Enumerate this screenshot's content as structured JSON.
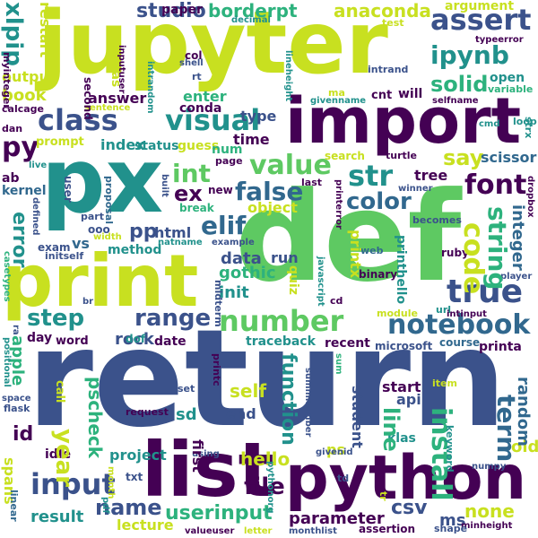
{
  "palette": {
    "purple": "#440154",
    "indigo": "#3b528b",
    "teal": "#21918c",
    "green": "#5ec962",
    "lime": "#c8e020",
    "navy": "#31688e",
    "aqua": "#2db27d"
  },
  "words": [
    {
      "text": "return",
      "color": "#3b528b"
    },
    {
      "text": "def",
      "color": "#5ec962"
    },
    {
      "text": "jupyter",
      "color": "#c8e020"
    },
    {
      "text": "import",
      "color": "#440154"
    },
    {
      "text": "px",
      "color": "#21918c"
    },
    {
      "text": "print",
      "color": "#c8e020"
    },
    {
      "text": "python",
      "color": "#440154"
    },
    {
      "text": "list",
      "color": "#440154"
    },
    {
      "text": "notebook",
      "color": "#31688e"
    },
    {
      "text": "number",
      "color": "#5ec962"
    },
    {
      "text": "true",
      "color": "#3b528b"
    },
    {
      "text": "class",
      "color": "#3b528b"
    },
    {
      "text": "visual",
      "color": "#21918c"
    },
    {
      "text": "range",
      "color": "#3b528b"
    },
    {
      "text": "input",
      "color": "#3b528b"
    },
    {
      "text": "studio",
      "color": "#3b528b"
    },
    {
      "text": "anaconda",
      "color": "#c8e020"
    },
    {
      "text": "assert",
      "color": "#3b528b"
    },
    {
      "text": "ipynb",
      "color": "#21918c"
    },
    {
      "text": "solid",
      "color": "#2db27d"
    },
    {
      "text": "str",
      "color": "#21918c"
    },
    {
      "text": "font",
      "color": "#440154"
    },
    {
      "text": "value",
      "color": "#5ec962"
    },
    {
      "text": "false",
      "color": "#31688e"
    },
    {
      "text": "color",
      "color": "#31688e"
    },
    {
      "text": "string",
      "color": "#2db27d"
    },
    {
      "text": "code",
      "color": "#c8e020"
    },
    {
      "text": "int",
      "color": "#5ec962"
    },
    {
      "text": "elif",
      "color": "#31688e"
    },
    {
      "text": "step",
      "color": "#21918c"
    },
    {
      "text": "name",
      "color": "#3b528b"
    },
    {
      "text": "file",
      "color": "#440154"
    },
    {
      "text": "userinput",
      "color": "#2db27d"
    },
    {
      "text": "result",
      "color": "#21918c"
    },
    {
      "text": "term",
      "color": "#31688e"
    },
    {
      "text": "install",
      "color": "#2db27d"
    },
    {
      "text": "function",
      "color": "#21918c"
    },
    {
      "text": "line",
      "color": "#2db27d"
    },
    {
      "text": "none",
      "color": "#c8e020"
    },
    {
      "text": "csv",
      "color": "#3b528b"
    },
    {
      "text": "self",
      "color": "#c8e020"
    },
    {
      "text": "hello",
      "color": "#c8e020"
    },
    {
      "text": "id",
      "color": "#440154"
    },
    {
      "text": "year",
      "color": "#c8e020"
    },
    {
      "text": "error",
      "color": "#21918c"
    },
    {
      "text": "ex",
      "color": "#440154"
    },
    {
      "text": "py",
      "color": "#440154"
    },
    {
      "text": "xlpip",
      "color": "#21918c"
    },
    {
      "text": "borderpt",
      "color": "#2db27d"
    },
    {
      "text": "say",
      "color": "#c8e020"
    },
    {
      "text": "tree",
      "color": "#440154"
    },
    {
      "text": "scissor",
      "color": "#31688e"
    },
    {
      "text": "integer",
      "color": "#31688e"
    },
    {
      "text": "data",
      "color": "#3b528b"
    },
    {
      "text": "gothic",
      "color": "#2db27d"
    },
    {
      "text": "init",
      "color": "#21918c"
    },
    {
      "text": "rock",
      "color": "#3b528b"
    },
    {
      "text": "apple",
      "color": "#2db27d"
    },
    {
      "text": "pscheck",
      "color": "#2db27d"
    },
    {
      "text": "project",
      "color": "#21918c"
    },
    {
      "text": "lecture",
      "color": "#c8e020"
    },
    {
      "text": "parameter",
      "color": "#440154"
    },
    {
      "text": "ms",
      "color": "#3b528b"
    },
    {
      "text": "random",
      "color": "#31688e"
    },
    {
      "text": "old",
      "color": "#c8e020"
    },
    {
      "text": "start",
      "color": "#440154"
    },
    {
      "text": "api",
      "color": "#3b528b"
    },
    {
      "text": "student",
      "color": "#3b528b"
    },
    {
      "text": "end",
      "color": "#3b528b"
    },
    {
      "text": "sd",
      "color": "#21918c"
    },
    {
      "text": "first",
      "color": "#440154"
    },
    {
      "text": "run",
      "color": "#3b528b"
    },
    {
      "text": "quiz",
      "color": "#c8e020"
    },
    {
      "text": "object",
      "color": "#c8e020"
    },
    {
      "text": "printx",
      "color": "#c8e020"
    },
    {
      "text": "pp",
      "color": "#3b528b"
    },
    {
      "text": "html",
      "color": "#3b528b"
    },
    {
      "text": "vs",
      "color": "#31688e"
    },
    {
      "text": "index",
      "color": "#21918c"
    },
    {
      "text": "status",
      "color": "#21918c"
    },
    {
      "text": "guess",
      "color": "#c8e020"
    },
    {
      "text": "time",
      "color": "#440154"
    },
    {
      "text": "type",
      "color": "#3b528b"
    },
    {
      "text": "answer",
      "color": "#440154"
    },
    {
      "text": "enter",
      "color": "#2db27d"
    },
    {
      "text": "conda",
      "color": "#440154"
    },
    {
      "text": "book",
      "color": "#c8e020"
    },
    {
      "text": "output",
      "color": "#c8e020"
    },
    {
      "text": "restart",
      "color": "#c8e020"
    },
    {
      "text": "argument",
      "color": "#c8e020"
    },
    {
      "text": "paper",
      "color": "#440154"
    },
    {
      "text": "col",
      "color": "#440154"
    },
    {
      "text": "pandas",
      "color": "#c8e020"
    },
    {
      "text": "open",
      "color": "#21918c"
    },
    {
      "text": "variable",
      "color": "#2db27d"
    },
    {
      "text": "cmd",
      "color": "#21918c"
    },
    {
      "text": "loop",
      "color": "#21918c"
    },
    {
      "text": "strx",
      "color": "#21918c"
    },
    {
      "text": "cnt",
      "color": "#440154"
    },
    {
      "text": "will",
      "color": "#440154"
    },
    {
      "text": "intrand",
      "color": "#3b528b"
    },
    {
      "text": "typeerror",
      "color": "#440154"
    },
    {
      "text": "test",
      "color": "#c8e020"
    },
    {
      "text": "decimal",
      "color": "#21918c"
    },
    {
      "text": "second",
      "color": "#440154"
    },
    {
      "text": "shell",
      "color": "#3b528b"
    },
    {
      "text": "rt",
      "color": "#3b528b"
    },
    {
      "text": "myinteger",
      "color": "#440154"
    },
    {
      "text": "calcage",
      "color": "#440154"
    },
    {
      "text": "dan",
      "color": "#440154"
    },
    {
      "text": "sentence",
      "color": "#c8e020"
    },
    {
      "text": "prompt",
      "color": "#c8e020"
    },
    {
      "text": "live",
      "color": "#21918c"
    },
    {
      "text": "ab",
      "color": "#440154"
    },
    {
      "text": "kernel",
      "color": "#31688e"
    },
    {
      "text": "defined",
      "color": "#3b528b"
    },
    {
      "text": "casetypes",
      "color": "#2db27d"
    },
    {
      "text": "exam",
      "color": "#3b528b"
    },
    {
      "text": "initself",
      "color": "#3b528b"
    },
    {
      "text": "user",
      "color": "#3b528b"
    },
    {
      "text": "part",
      "color": "#3b528b"
    },
    {
      "text": "ooo",
      "color": "#3b528b"
    },
    {
      "text": "width",
      "color": "#c8e020"
    },
    {
      "text": "method",
      "color": "#21918c"
    },
    {
      "text": "proposal",
      "color": "#31688e"
    },
    {
      "text": "natname",
      "color": "#21918c"
    },
    {
      "text": "example",
      "color": "#3b528b"
    },
    {
      "text": "built",
      "color": "#3b528b"
    },
    {
      "text": "new",
      "color": "#440154"
    },
    {
      "text": "break",
      "color": "#2db27d"
    },
    {
      "text": "page",
      "color": "#440154"
    },
    {
      "text": "num",
      "color": "#2db27d"
    },
    {
      "text": "search",
      "color": "#c8e020"
    },
    {
      "text": "last",
      "color": "#440154"
    },
    {
      "text": "turtle",
      "color": "#440154"
    },
    {
      "text": "winner",
      "color": "#3b528b"
    },
    {
      "text": "becomes",
      "color": "#3b528b"
    },
    {
      "text": "printerror",
      "color": "#440154"
    },
    {
      "text": "dropbox",
      "color": "#440154"
    },
    {
      "text": "web",
      "color": "#31688e"
    },
    {
      "text": "printhello",
      "color": "#21918c"
    },
    {
      "text": "binary",
      "color": "#440154"
    },
    {
      "text": "ruby",
      "color": "#440154"
    },
    {
      "text": "player",
      "color": "#3b528b"
    },
    {
      "text": "url",
      "color": "#21918c"
    },
    {
      "text": "intinput",
      "color": "#440154"
    },
    {
      "text": "module",
      "color": "#c8e020"
    },
    {
      "text": "recent",
      "color": "#440154"
    },
    {
      "text": "microsoft",
      "color": "#3b528b"
    },
    {
      "text": "course",
      "color": "#31688e"
    },
    {
      "text": "printa",
      "color": "#440154"
    },
    {
      "text": "sum",
      "color": "#2db27d"
    },
    {
      "text": "traceback",
      "color": "#21918c"
    },
    {
      "text": "date",
      "color": "#440154"
    },
    {
      "text": "dof",
      "color": "#21918c"
    },
    {
      "text": "day",
      "color": "#440154"
    },
    {
      "text": "word",
      "color": "#440154"
    },
    {
      "text": "positional",
      "color": "#21918c"
    },
    {
      "text": "space",
      "color": "#3b528b"
    },
    {
      "text": "flask",
      "color": "#3b528b"
    },
    {
      "text": "call",
      "color": "#c8e020"
    },
    {
      "text": "ra",
      "color": "#3b528b"
    },
    {
      "text": "br",
      "color": "#3b528b"
    },
    {
      "text": "printc",
      "color": "#440154"
    },
    {
      "text": "midterm",
      "color": "#3b528b"
    },
    {
      "text": "javascript",
      "color": "#21918c"
    },
    {
      "text": "cd",
      "color": "#440154"
    },
    {
      "text": "request",
      "color": "#440154"
    },
    {
      "text": "case",
      "color": "#3b528b"
    },
    {
      "text": "set",
      "color": "#3b528b"
    },
    {
      "text": "summnumber",
      "color": "#3b528b"
    },
    {
      "text": "keyword",
      "color": "#21918c"
    },
    {
      "text": "item",
      "color": "#c8e020"
    },
    {
      "text": "numpy",
      "color": "#3b528b"
    },
    {
      "text": "ps",
      "color": "#c8e020"
    },
    {
      "text": "givenid",
      "color": "#3b528b"
    },
    {
      "text": "td",
      "color": "#3b528b"
    },
    {
      "text": "klas",
      "color": "#21918c"
    },
    {
      "text": "minheight",
      "color": "#440154"
    },
    {
      "text": "idle",
      "color": "#440154"
    },
    {
      "text": "spans",
      "color": "#c8e020"
    },
    {
      "text": "month",
      "color": "#c8e020"
    },
    {
      "text": "txt",
      "color": "#3b528b"
    },
    {
      "text": "pdf",
      "color": "#21918c"
    },
    {
      "text": "using",
      "color": "#3b528b"
    },
    {
      "text": "pythonorg",
      "color": "#21918c"
    },
    {
      "text": "tr",
      "color": "#c8e020"
    },
    {
      "text": "linear",
      "color": "#31688e"
    },
    {
      "text": "valueuser",
      "color": "#440154"
    },
    {
      "text": "letter",
      "color": "#c8e020"
    },
    {
      "text": "monthlist",
      "color": "#3b528b"
    },
    {
      "text": "assertion",
      "color": "#440154"
    },
    {
      "text": "shape",
      "color": "#3b528b"
    },
    {
      "text": "inputuser",
      "color": "#440154"
    },
    {
      "text": "intrandom",
      "color": "#21918c"
    },
    {
      "text": "ma",
      "color": "#c8e020"
    },
    {
      "text": "givenname",
      "color": "#21918c"
    },
    {
      "text": "selfname",
      "color": "#440154"
    },
    {
      "text": "lineheight",
      "color": "#21918c"
    }
  ]
}
